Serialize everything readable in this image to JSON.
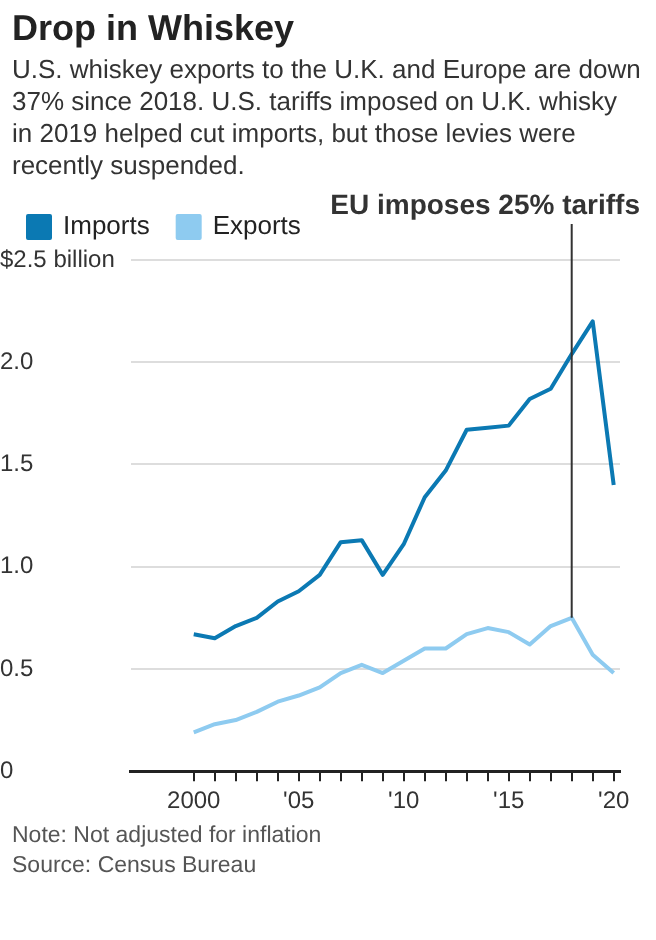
{
  "chart_data": {
    "type": "line",
    "title": "Drop in Whiskey",
    "subtitle": "U.S. whiskey exports to the U.K. and Europe are down 37% since 2018. U.S. tariffs imposed on U.K. whisky in 2019 helped cut imports, but those levies were recently suspended.",
    "x": [
      2000,
      2001,
      2002,
      2003,
      2004,
      2005,
      2006,
      2007,
      2008,
      2009,
      2010,
      2011,
      2012,
      2013,
      2014,
      2015,
      2016,
      2017,
      2018,
      2019,
      2020
    ],
    "series": [
      {
        "name": "Imports",
        "color": "#0b79b3",
        "values": [
          0.67,
          0.65,
          0.71,
          0.75,
          0.83,
          0.88,
          0.96,
          1.12,
          1.13,
          0.96,
          1.11,
          1.34,
          1.47,
          1.67,
          1.68,
          1.69,
          1.82,
          1.87,
          2.04,
          2.2,
          1.4
        ]
      },
      {
        "name": "Exports",
        "color": "#8ecbf0",
        "values": [
          0.19,
          0.23,
          0.25,
          0.29,
          0.34,
          0.37,
          0.41,
          0.48,
          0.52,
          0.48,
          0.54,
          0.6,
          0.6,
          0.67,
          0.7,
          0.68,
          0.62,
          0.71,
          0.75,
          0.57,
          0.48
        ]
      }
    ],
    "xlim": [
      1997,
      2020.3
    ],
    "xticks": [
      {
        "value": 2000,
        "label": "2000"
      },
      {
        "value": 2001,
        "label": null
      },
      {
        "value": 2002,
        "label": null
      },
      {
        "value": 2003,
        "label": null
      },
      {
        "value": 2004,
        "label": null
      },
      {
        "value": 2005,
        "label": "'05"
      },
      {
        "value": 2006,
        "label": null
      },
      {
        "value": 2007,
        "label": null
      },
      {
        "value": 2008,
        "label": null
      },
      {
        "value": 2009,
        "label": null
      },
      {
        "value": 2010,
        "label": "'10"
      },
      {
        "value": 2011,
        "label": null
      },
      {
        "value": 2012,
        "label": null
      },
      {
        "value": 2013,
        "label": null
      },
      {
        "value": 2014,
        "label": null
      },
      {
        "value": 2015,
        "label": "'15"
      },
      {
        "value": 2016,
        "label": null
      },
      {
        "value": 2017,
        "label": null
      },
      {
        "value": 2018,
        "label": null
      },
      {
        "value": 2019,
        "label": null
      },
      {
        "value": 2020,
        "label": "'20"
      }
    ],
    "ylim": [
      0,
      2.5
    ],
    "yticks": [
      0,
      0.5,
      {
        "value": 1,
        "label": "1.0"
      },
      {
        "value": 1.5,
        "label": "1.5"
      },
      {
        "value": 2,
        "label": "2.0"
      },
      {
        "value": 2.5,
        "label": "$2.5 billion"
      }
    ],
    "grid": "y",
    "legend": "top left",
    "marker": "none",
    "line_style": "solid",
    "ref_lines": [
      {
        "axis": "x",
        "value": 2018,
        "label": "EU imposes 25% tariffs",
        "color": "#333333"
      }
    ],
    "annotations": [
      "Note: Not adjusted for inflation",
      "Source: Census Bureau"
    ]
  }
}
